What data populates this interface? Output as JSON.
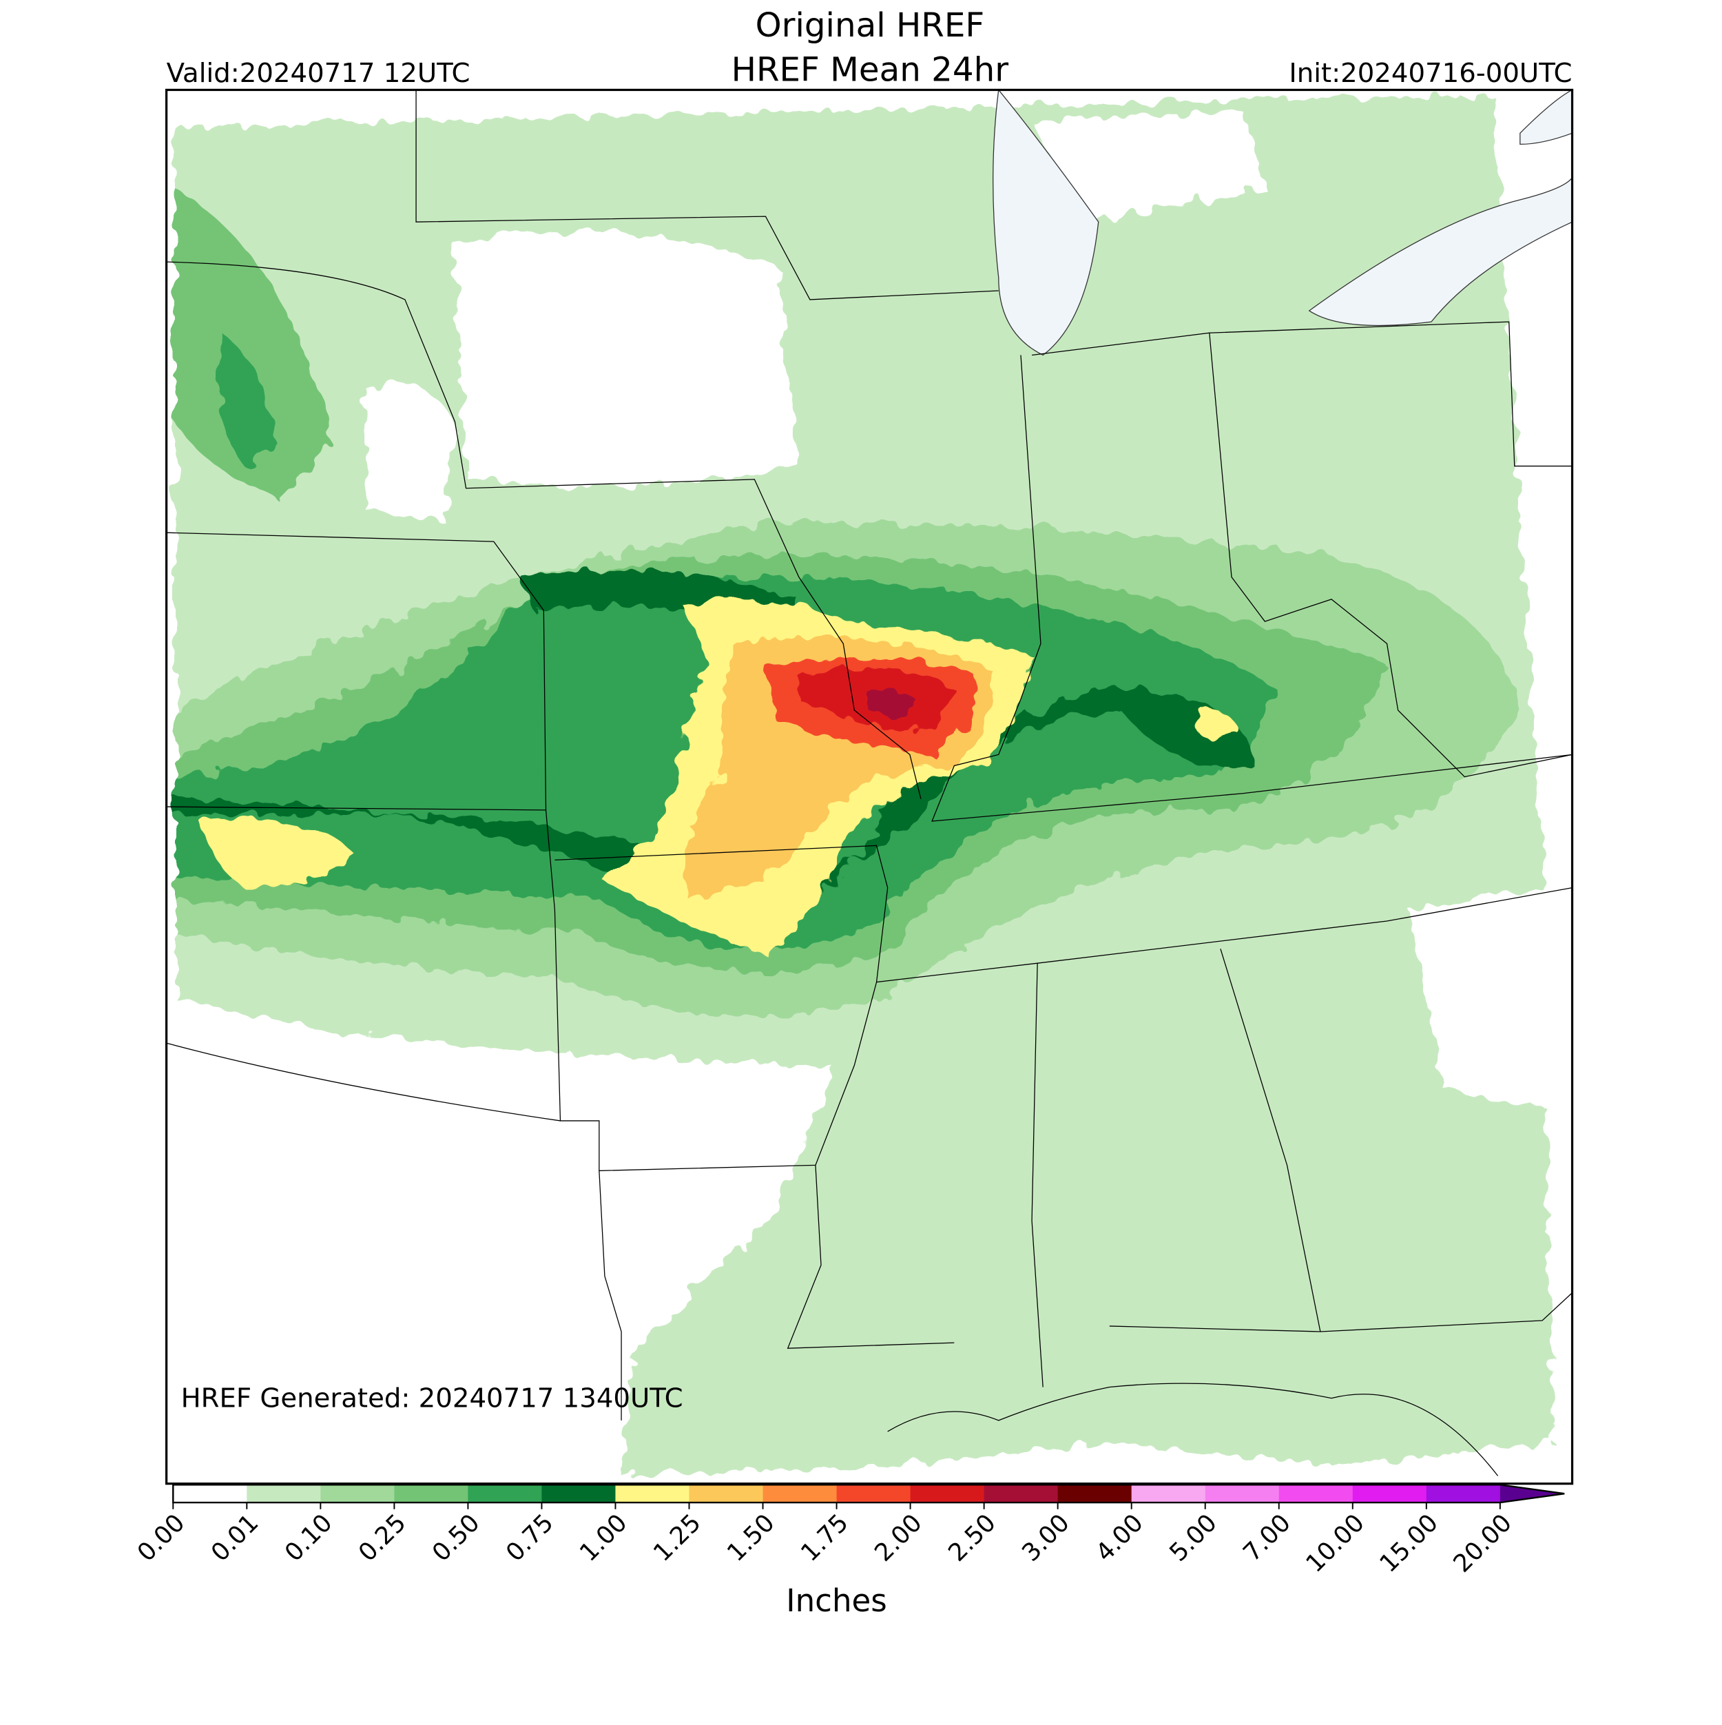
{
  "header": {
    "title": "Original HREF",
    "subtitle": "HREF Mean 24hr",
    "valid": "Valid:20240717 12UTC",
    "init": "Init:20240716-00UTC"
  },
  "annotation": "HREF Generated: 20240717 1340UTC",
  "colorbar": {
    "label": "Inches",
    "ticks": [
      {
        "value": 0,
        "label": "0.00"
      },
      {
        "value": 0.01,
        "label": "0.01"
      },
      {
        "value": 0.1,
        "label": "0.10"
      },
      {
        "value": 0.25,
        "label": "0.25"
      },
      {
        "value": 0.5,
        "label": "0.50"
      },
      {
        "value": 0.75,
        "label": "0.75"
      },
      {
        "value": 1,
        "label": "1.00"
      },
      {
        "value": 1.25,
        "label": "1.25"
      },
      {
        "value": 1.5,
        "label": "1.50"
      },
      {
        "value": 1.75,
        "label": "1.75"
      },
      {
        "value": 2,
        "label": "2.00"
      },
      {
        "value": 2.5,
        "label": "2.50"
      },
      {
        "value": 3,
        "label": "3.00"
      },
      {
        "value": 4,
        "label": "4.00"
      },
      {
        "value": 5,
        "label": "5.00"
      },
      {
        "value": 7,
        "label": "7.00"
      },
      {
        "value": 10,
        "label": "10.00"
      },
      {
        "value": 15,
        "label": "15.00"
      },
      {
        "value": 20,
        "label": "20.00"
      }
    ],
    "colors": [
      "#ffffff",
      "#c7e9c0",
      "#a1d99b",
      "#74c476",
      "#31a354",
      "#006d2c",
      "#fff685",
      "#fcc85a",
      "#fd8d3c",
      "#f4472a",
      "#d7191c",
      "#a50f35",
      "#6b0000",
      "#f7a8f0",
      "#f57ff0",
      "#f24cf0",
      "#e01cf0",
      "#a010e0"
    ],
    "extend_color": "#5a0090"
  }
}
